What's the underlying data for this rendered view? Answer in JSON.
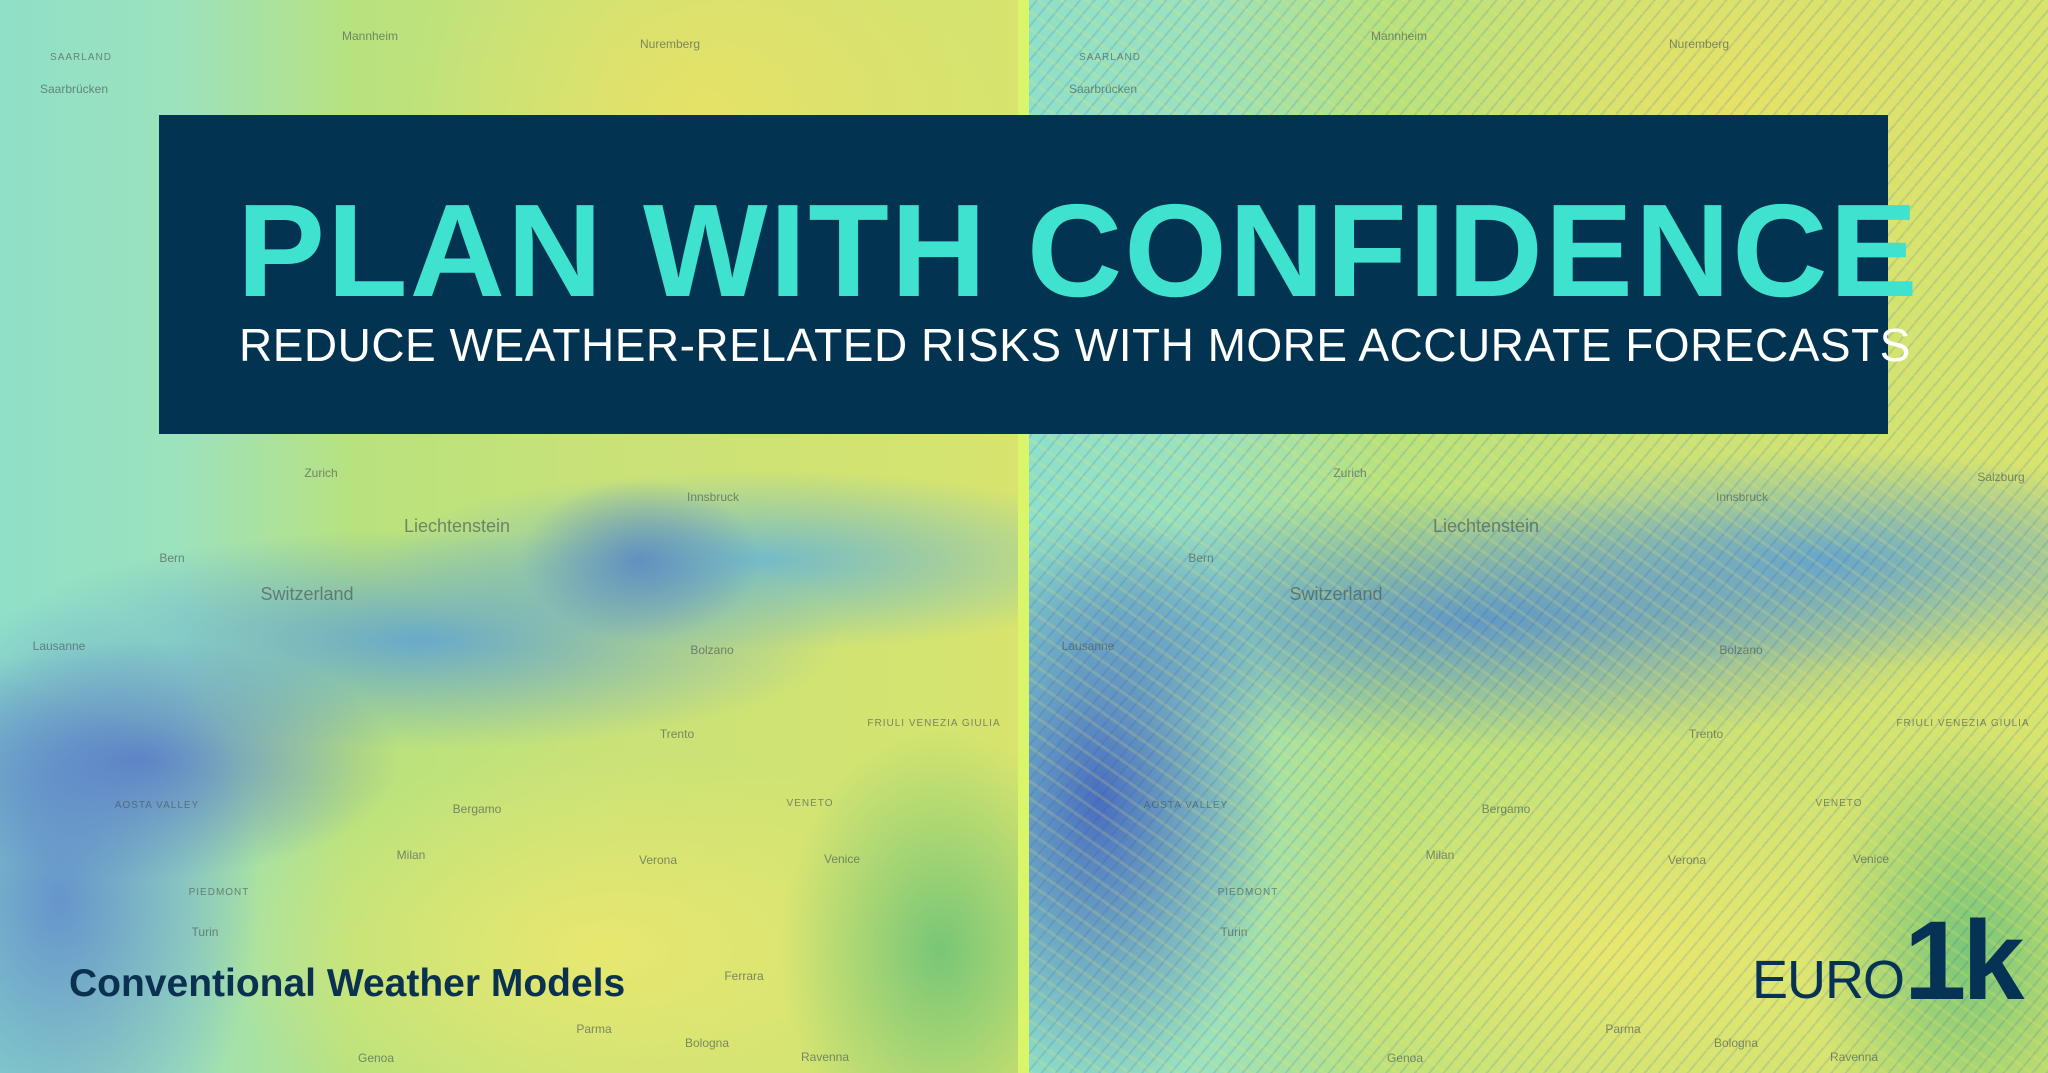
{
  "banner": {
    "title": "PLAN WITH CONFIDENCE",
    "subtitle": "REDUCE WEATHER-RELATED RISKS WITH MORE ACCURATE FORECASTS"
  },
  "left_panel": {
    "caption": "Conventional Weather Models"
  },
  "right_panel": {
    "logo": {
      "euro": "EURO",
      "onek": "1k"
    }
  },
  "colors": {
    "banner_bg": "#023351",
    "title": "#3fe1cf",
    "divider": "#d9f56a",
    "caption": "#0b3150"
  },
  "map": {
    "labels": [
      "Mannheim",
      "Nuremberg",
      "SAARLAND",
      "Saarbrücken",
      "Zurich",
      "Liechtenstein",
      "Innsbruck",
      "Bern",
      "Switzerland",
      "Lausanne",
      "Bolzano",
      "Trento",
      "Bergamo",
      "Milan",
      "Verona",
      "Venice",
      "VENETO",
      "FRIULI VENEZIA GIULIA",
      "PIEDMONT",
      "Turin",
      "AOSTA VALLEY",
      "Ferrara",
      "Parma",
      "Bologna",
      "Genoa",
      "Ravenna",
      "Salzburg"
    ]
  }
}
